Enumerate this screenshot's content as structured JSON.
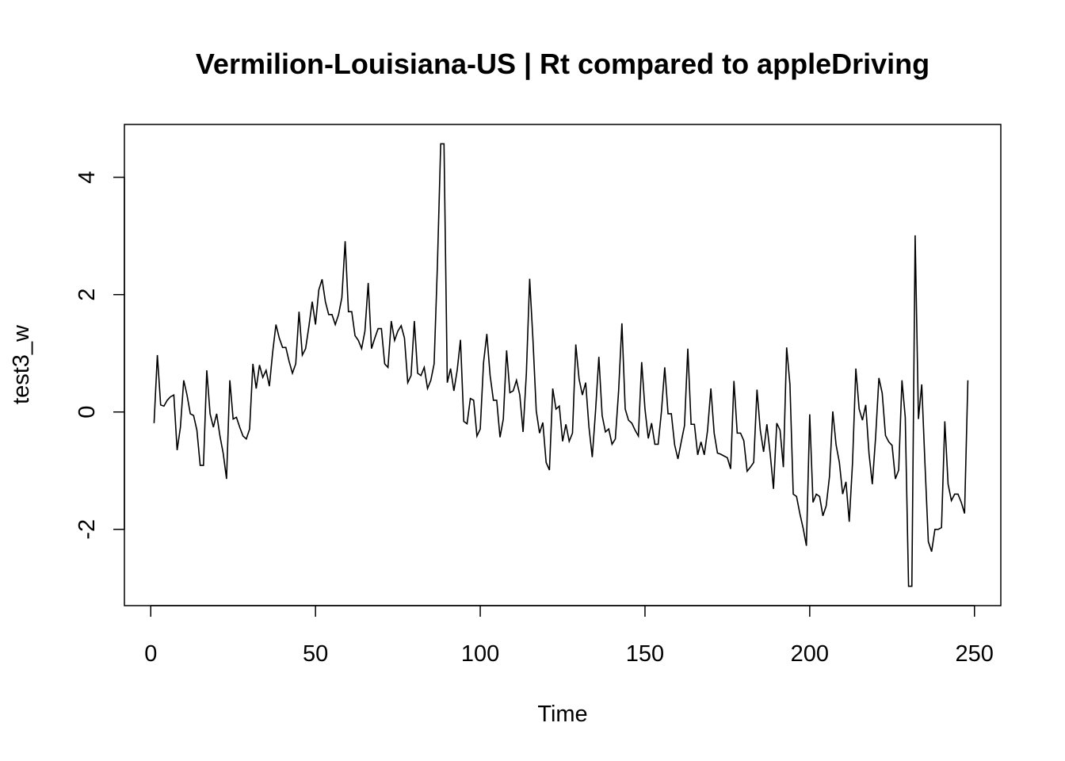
{
  "chart_data": {
    "type": "line",
    "title": "Vermilion-Louisiana-US | Rt compared to appleDriving",
    "xlabel": "Time",
    "ylabel": "test3_w",
    "xlim": [
      -8,
      258
    ],
    "ylim": [
      -3.3,
      4.9
    ],
    "x_ticks": [
      0,
      50,
      100,
      150,
      200,
      250
    ],
    "y_ticks": [
      -2,
      0,
      2,
      4
    ],
    "grid": false,
    "legend": "none",
    "line_color": "#000000",
    "series": [
      {
        "x_start": 1,
        "values": [
          -0.19,
          0.97,
          0.12,
          0.1,
          0.2,
          0.26,
          0.29,
          -0.65,
          -0.26,
          0.54,
          0.29,
          -0.03,
          -0.06,
          -0.31,
          -0.91,
          -0.91,
          0.71,
          -0.03,
          -0.26,
          -0.03,
          -0.41,
          -0.71,
          -1.14,
          0.54,
          -0.12,
          -0.09,
          -0.26,
          -0.41,
          -0.46,
          -0.29,
          0.82,
          0.4,
          0.8,
          0.59,
          0.71,
          0.44,
          1.02,
          1.49,
          1.26,
          1.1,
          1.1,
          0.86,
          0.66,
          0.82,
          1.71,
          0.97,
          1.08,
          1.46,
          1.88,
          1.49,
          2.08,
          2.26,
          1.88,
          1.66,
          1.66,
          1.49,
          1.66,
          1.95,
          2.91,
          1.71,
          1.71,
          1.3,
          1.22,
          1.08,
          1.38,
          2.2,
          1.08,
          1.26,
          1.42,
          1.42,
          0.82,
          0.76,
          1.55,
          1.22,
          1.38,
          1.47,
          1.26,
          0.5,
          0.62,
          1.55,
          0.66,
          0.62,
          0.76,
          0.4,
          0.54,
          0.82,
          2.5,
          4.57,
          4.57,
          0.5,
          0.74,
          0.36,
          0.71,
          1.23,
          -0.16,
          -0.2,
          0.23,
          0.2,
          -0.41,
          -0.29,
          0.84,
          1.33,
          0.62,
          0.2,
          0.2,
          -0.43,
          -0.12,
          1.05,
          0.33,
          0.36,
          0.54,
          0.29,
          -0.34,
          0.66,
          2.27,
          1.23,
          0.02,
          -0.36,
          -0.18,
          -0.86,
          -0.99,
          0.4,
          0.05,
          0.1,
          -0.5,
          -0.21,
          -0.5,
          -0.36,
          1.15,
          0.56,
          0.29,
          0.5,
          -0.26,
          -0.77,
          0.02,
          0.94,
          -0.06,
          -0.34,
          -0.29,
          -0.55,
          -0.46,
          0.36,
          1.51,
          0.05,
          -0.14,
          -0.19,
          -0.31,
          -0.41,
          0.85,
          0.05,
          -0.45,
          -0.19,
          -0.55,
          -0.55,
          0.01,
          0.76,
          -0.03,
          -0.03,
          -0.56,
          -0.8,
          -0.51,
          -0.23,
          1.08,
          -0.21,
          -0.21,
          -0.73,
          -0.51,
          -0.73,
          -0.31,
          0.4,
          -0.36,
          -0.7,
          -0.72,
          -0.75,
          -0.78,
          -0.97,
          0.53,
          -0.36,
          -0.36,
          -0.49,
          -1.01,
          -0.94,
          -0.86,
          0.38,
          -0.31,
          -0.68,
          -0.21,
          -0.71,
          -1.31,
          -0.19,
          -0.31,
          -0.94,
          1.1,
          0.47,
          -1.4,
          -1.44,
          -1.73,
          -1.98,
          -2.28,
          -0.04,
          -1.54,
          -1.4,
          -1.44,
          -1.77,
          -1.6,
          -1.1,
          0.01,
          -0.56,
          -0.86,
          -1.4,
          -1.19,
          -1.87,
          -0.86,
          0.74,
          0.05,
          -0.14,
          0.12,
          -0.71,
          -1.23,
          -0.43,
          0.58,
          0.32,
          -0.4,
          -0.51,
          -0.57,
          -1.14,
          -0.99,
          0.54,
          -0.09,
          -2.97,
          -2.97,
          3.01,
          -0.12,
          0.47,
          -0.91,
          -2.21,
          -2.38,
          -2.0,
          -2.0,
          -1.97,
          -0.16,
          -1.23,
          -1.51,
          -1.4,
          -1.4,
          -1.54,
          -1.73,
          0.54
        ]
      }
    ]
  }
}
